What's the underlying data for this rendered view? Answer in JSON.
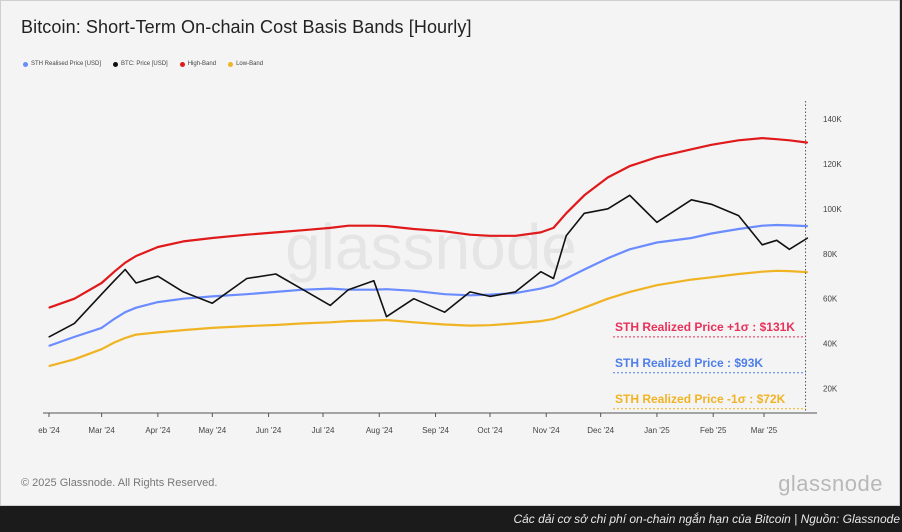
{
  "chart_data": {
    "type": "line",
    "title": "Bitcoin: Short-Term On-chain Cost Basis Bands [Hourly]",
    "watermark": "glassnode",
    "x_tick_labels": [
      "eb '24",
      "Mar '24",
      "Apr '24",
      "May '24",
      "Jun '24",
      "Jul '24",
      "Aug '24",
      "Sep '24",
      "Oct '24",
      "Nov '24",
      "Dec '24",
      "Jan '25",
      "Feb '25",
      "Mar '25"
    ],
    "y_tick_labels": [
      "20K",
      "40K",
      "60K",
      "80K",
      "100K",
      "120K",
      "140K"
    ],
    "y_ticks": [
      20000,
      40000,
      60000,
      80000,
      100000,
      120000,
      140000
    ],
    "ylim": [
      10000,
      148000
    ],
    "xlim": [
      "2024-02-01",
      "2025-03-28"
    ],
    "scale": "linear",
    "grid": false,
    "legend_position": "top-left",
    "x": [
      "2024-02-01",
      "2024-02-15",
      "2024-03-01",
      "2024-03-08",
      "2024-03-14",
      "2024-03-20",
      "2024-04-01",
      "2024-04-15",
      "2024-05-01",
      "2024-05-20",
      "2024-06-05",
      "2024-06-20",
      "2024-07-05",
      "2024-07-15",
      "2024-07-29",
      "2024-08-05",
      "2024-08-20",
      "2024-09-06",
      "2024-09-20",
      "2024-10-01",
      "2024-10-15",
      "2024-10-29",
      "2024-11-05",
      "2024-11-12",
      "2024-11-22",
      "2024-12-05",
      "2024-12-17",
      "2025-01-01",
      "2025-01-20",
      "2025-01-31",
      "2025-02-15",
      "2025-02-28",
      "2025-03-08",
      "2025-03-15",
      "2025-03-25"
    ],
    "series": [
      {
        "name": "STH Realised Price [USD]",
        "color": "#6b8cff",
        "values": [
          39000,
          43000,
          47000,
          51000,
          54000,
          56000,
          58500,
          60000,
          61000,
          62000,
          63000,
          64000,
          64500,
          64000,
          64000,
          64200,
          63500,
          62000,
          61500,
          61800,
          62500,
          64500,
          66000,
          69000,
          73000,
          78000,
          82000,
          85000,
          87000,
          89000,
          91000,
          92500,
          92800,
          92600,
          92300
        ]
      },
      {
        "name": "BTC: Price [USD]",
        "color": "#111111",
        "values": [
          43000,
          49000,
          62000,
          68000,
          73000,
          67000,
          70000,
          63000,
          58000,
          69000,
          71000,
          64000,
          57000,
          64000,
          68000,
          52000,
          60000,
          54000,
          63000,
          61000,
          63000,
          72000,
          69000,
          88000,
          98000,
          100000,
          106000,
          94000,
          104000,
          102000,
          97000,
          84000,
          86000,
          82000,
          87000
        ]
      },
      {
        "name": "High-Band",
        "color": "#e0191b",
        "values": [
          56000,
          60000,
          67000,
          72000,
          76000,
          79000,
          83000,
          85500,
          87000,
          88500,
          89500,
          90500,
          91500,
          92500,
          92500,
          92300,
          91000,
          90000,
          88500,
          88000,
          88000,
          89500,
          91500,
          98000,
          106000,
          114000,
          119000,
          123000,
          126500,
          128500,
          130500,
          131500,
          131000,
          130500,
          129500
        ]
      },
      {
        "name": "Low-Band",
        "color": "#f0b323",
        "values": [
          30000,
          33000,
          37500,
          40500,
          42500,
          44000,
          45000,
          46000,
          47000,
          47800,
          48300,
          49000,
          49500,
          50000,
          50300,
          50500,
          49500,
          48500,
          48000,
          48200,
          49000,
          50000,
          51000,
          53000,
          56000,
          60000,
          63000,
          66000,
          68500,
          69500,
          71000,
          72000,
          72400,
          72300,
          71800
        ]
      }
    ],
    "annotations": [
      {
        "text": "STH Realized Price +1σ : $131K",
        "color": "#e8315b",
        "value": 43000
      },
      {
        "text": "STH Realized Price  : $93K",
        "color": "#4e7ee8",
        "value": 27000
      },
      {
        "text": "STH Realized Price -1σ : $72K",
        "color": "#f0b323",
        "value": 11000
      }
    ]
  },
  "footer": {
    "copyright": "© 2025 Glassnode. All Rights Reserved.",
    "brand": "glassnode"
  },
  "caption": "Các dải cơ sở chi phí on-chain ngắn hạn của Bitcoin | Nguồn: Glassnode"
}
